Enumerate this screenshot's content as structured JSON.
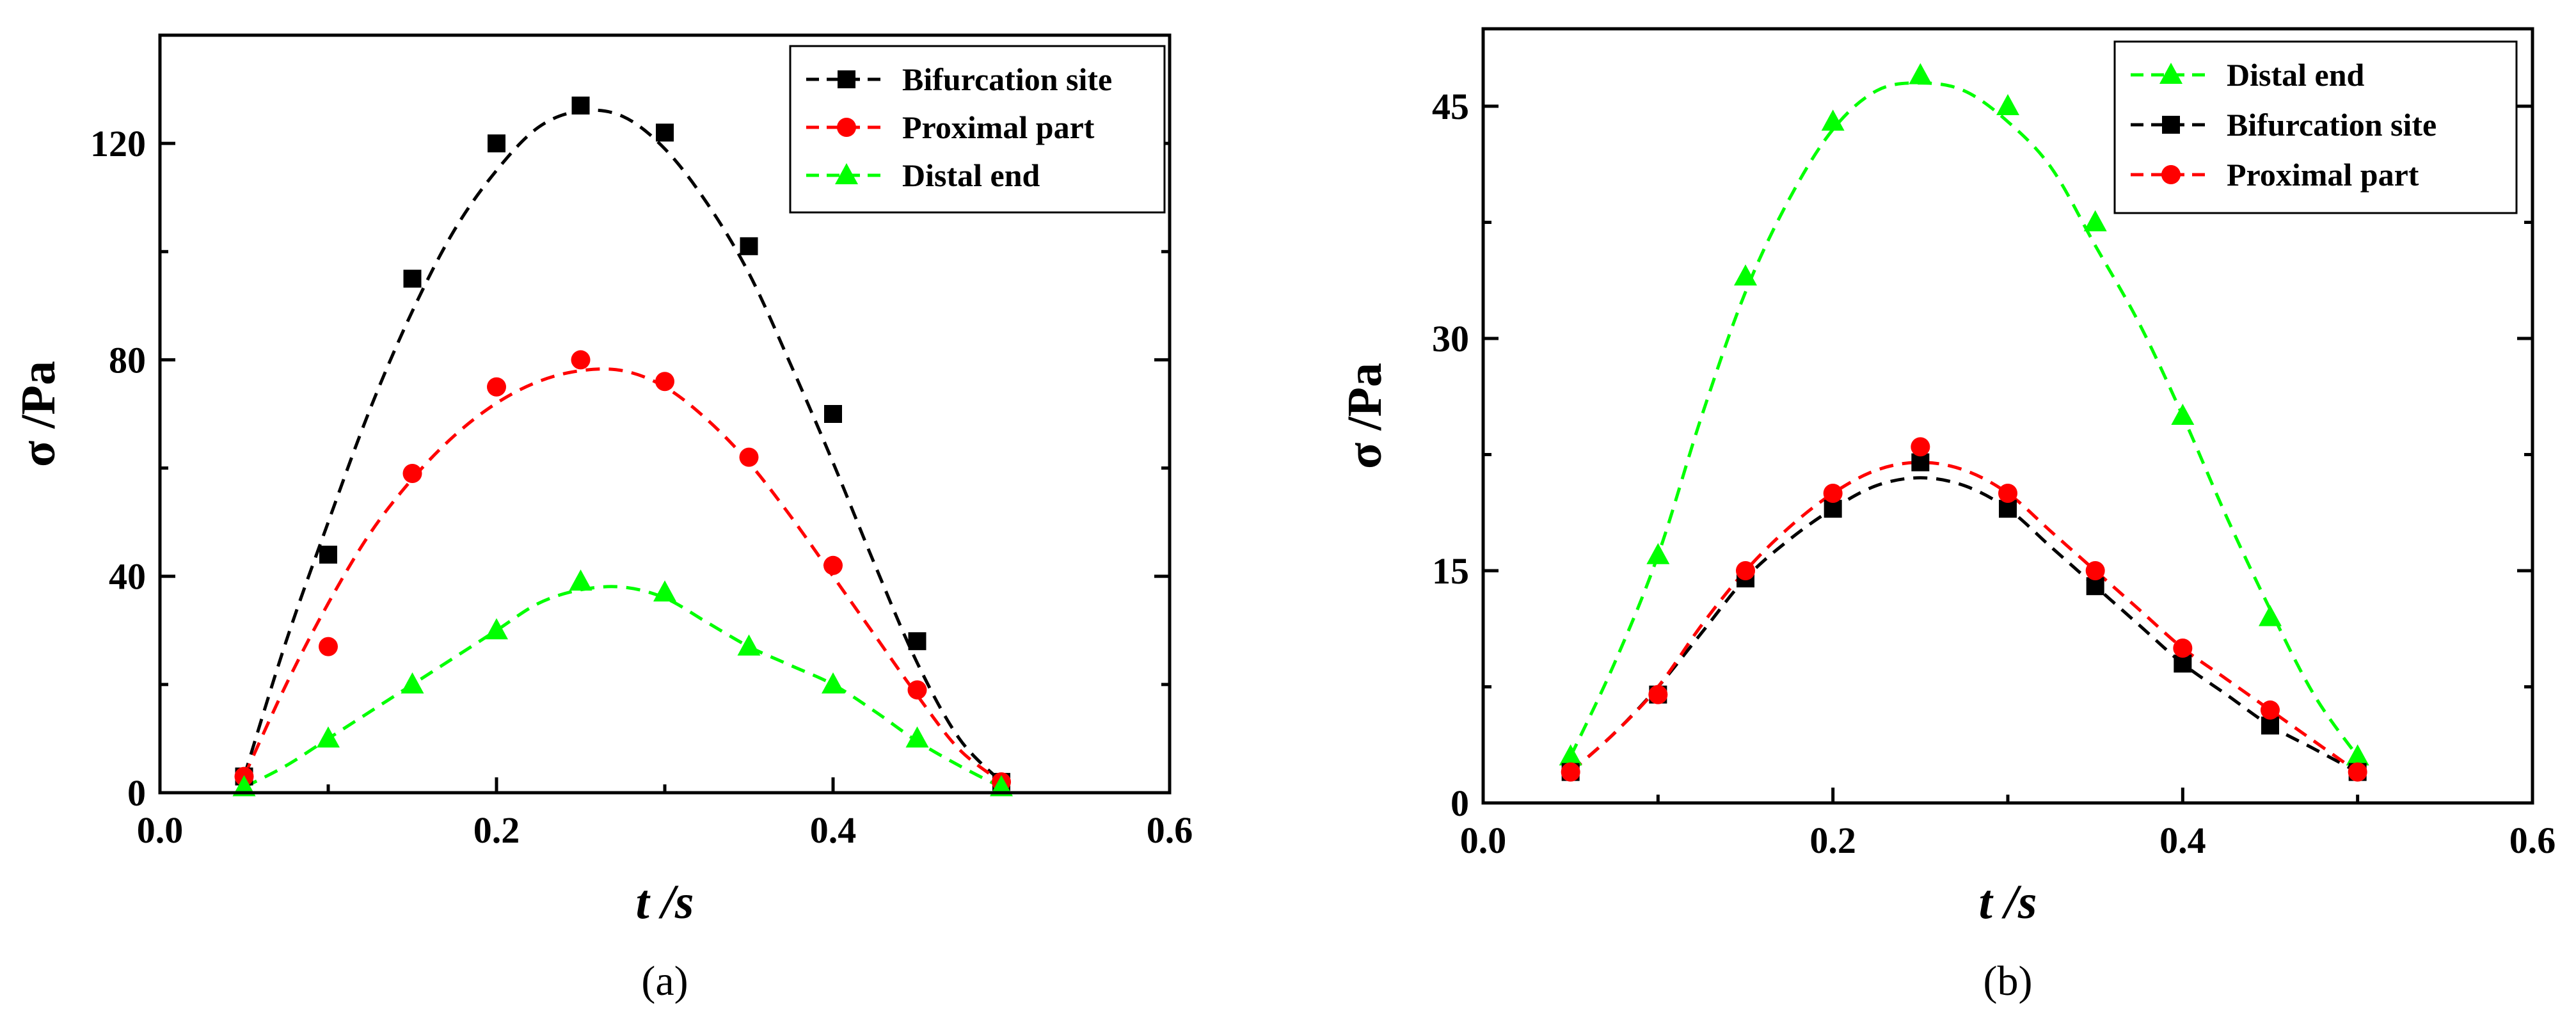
{
  "chart_data": [
    {
      "type": "line",
      "caption": "(a)",
      "xlabel_var": "t",
      "xlabel_unit": " /s",
      "ylabel": "σ /Pa",
      "xlim": [
        0.0,
        0.6
      ],
      "ylim": [
        0,
        140
      ],
      "xticks": [
        "0.0",
        "0.2",
        "0.4",
        "0.6"
      ],
      "yticks": [
        "0",
        "40",
        "80",
        "120"
      ],
      "legend_position": "top-right",
      "series": [
        {
          "name": "Bifurcation site",
          "color": "#000000",
          "marker": "square",
          "x": [
            0.05,
            0.1,
            0.15,
            0.2,
            0.25,
            0.3,
            0.35,
            0.4,
            0.45,
            0.5
          ],
          "y": [
            3,
            44,
            95,
            120,
            127,
            122,
            101,
            70,
            28,
            2
          ],
          "fit": [
            [
              0.05,
              3
            ],
            [
              0.075,
              28
            ],
            [
              0.1,
              50
            ],
            [
              0.125,
              71
            ],
            [
              0.15,
              89
            ],
            [
              0.175,
              104
            ],
            [
              0.2,
              115
            ],
            [
              0.225,
              123
            ],
            [
              0.25,
              126
            ],
            [
              0.275,
              125
            ],
            [
              0.3,
              119
            ],
            [
              0.325,
              109
            ],
            [
              0.35,
              96
            ],
            [
              0.375,
              79
            ],
            [
              0.4,
              61
            ],
            [
              0.425,
              42
            ],
            [
              0.45,
              24
            ],
            [
              0.475,
              10
            ],
            [
              0.5,
              2
            ]
          ]
        },
        {
          "name": "Proximal part",
          "color": "#ff0000",
          "marker": "circle",
          "x": [
            0.05,
            0.1,
            0.15,
            0.2,
            0.25,
            0.3,
            0.35,
            0.4,
            0.45,
            0.5
          ],
          "y": [
            3,
            27,
            59,
            75,
            80,
            76,
            62,
            42,
            19,
            2
          ],
          "fit": [
            [
              0.05,
              3
            ],
            [
              0.075,
              20
            ],
            [
              0.1,
              35
            ],
            [
              0.125,
              48
            ],
            [
              0.15,
              58
            ],
            [
              0.175,
              66
            ],
            [
              0.2,
              72
            ],
            [
              0.225,
              76
            ],
            [
              0.25,
              78
            ],
            [
              0.275,
              78
            ],
            [
              0.3,
              75
            ],
            [
              0.325,
              69
            ],
            [
              0.35,
              61
            ],
            [
              0.375,
              51
            ],
            [
              0.4,
              40
            ],
            [
              0.425,
              29
            ],
            [
              0.45,
              18
            ],
            [
              0.475,
              8
            ],
            [
              0.5,
              2
            ]
          ]
        },
        {
          "name": "Distal end",
          "color": "#00ff00",
          "marker": "triangle",
          "x": [
            0.05,
            0.1,
            0.15,
            0.2,
            0.25,
            0.3,
            0.35,
            0.4,
            0.45,
            0.5
          ],
          "y": [
            1,
            10,
            20,
            30,
            39,
            37,
            27,
            20,
            10,
            1
          ],
          "fit": [
            [
              0.05,
              1
            ],
            [
              0.075,
              5
            ],
            [
              0.1,
              10
            ],
            [
              0.125,
              15
            ],
            [
              0.15,
              20
            ],
            [
              0.175,
              25
            ],
            [
              0.2,
              30
            ],
            [
              0.225,
              35
            ],
            [
              0.25,
              37.5
            ],
            [
              0.275,
              38
            ],
            [
              0.3,
              36
            ],
            [
              0.325,
              31.5
            ],
            [
              0.35,
              27
            ],
            [
              0.375,
              23.5
            ],
            [
              0.4,
              20
            ],
            [
              0.425,
              15
            ],
            [
              0.45,
              9.5
            ],
            [
              0.475,
              5
            ],
            [
              0.5,
              1
            ]
          ]
        }
      ]
    },
    {
      "type": "line",
      "caption": "(b)",
      "xlabel_var": "t",
      "xlabel_unit": " /s",
      "ylabel": "σ  /Pa",
      "xlim": [
        0.0,
        0.6
      ],
      "ylim": [
        0,
        50
      ],
      "xticks": [
        "0.0",
        "0.2",
        "0.4",
        "0.6"
      ],
      "yticks": [
        "0",
        "15",
        "30",
        "45"
      ],
      "legend_position": "top-right",
      "series": [
        {
          "name": "Distal end",
          "color": "#00ff00",
          "marker": "triangle",
          "x": [
            0.05,
            0.1,
            0.15,
            0.2,
            0.25,
            0.3,
            0.35,
            0.4,
            0.45,
            0.5
          ],
          "y": [
            3,
            16,
            34,
            44,
            47,
            45,
            37.5,
            25,
            12,
            3
          ],
          "fit": [
            [
              0.05,
              3
            ],
            [
              0.075,
              9
            ],
            [
              0.1,
              16
            ],
            [
              0.125,
              25
            ],
            [
              0.15,
              33
            ],
            [
              0.175,
              39
            ],
            [
              0.2,
              43.5
            ],
            [
              0.225,
              46
            ],
            [
              0.25,
              46.5
            ],
            [
              0.275,
              46
            ],
            [
              0.3,
              44
            ],
            [
              0.325,
              41
            ],
            [
              0.35,
              36
            ],
            [
              0.375,
              31
            ],
            [
              0.4,
              25
            ],
            [
              0.425,
              18.5
            ],
            [
              0.45,
              12.5
            ],
            [
              0.475,
              7
            ],
            [
              0.5,
              3
            ]
          ]
        },
        {
          "name": "Bifurcation site",
          "color": "#000000",
          "marker": "square",
          "x": [
            0.05,
            0.1,
            0.15,
            0.2,
            0.25,
            0.3,
            0.35,
            0.4,
            0.45,
            0.5
          ],
          "y": [
            2,
            7,
            14.5,
            19,
            22,
            19,
            14,
            9,
            5,
            2
          ],
          "fit": [
            [
              0.05,
              2
            ],
            [
              0.075,
              4.5
            ],
            [
              0.1,
              7.5
            ],
            [
              0.125,
              11
            ],
            [
              0.15,
              14.5
            ],
            [
              0.175,
              17
            ],
            [
              0.2,
              19
            ],
            [
              0.225,
              20.5
            ],
            [
              0.25,
              21
            ],
            [
              0.275,
              20.5
            ],
            [
              0.3,
              19
            ],
            [
              0.325,
              16.5
            ],
            [
              0.35,
              14
            ],
            [
              0.375,
              11.5
            ],
            [
              0.4,
              9
            ],
            [
              0.425,
              7
            ],
            [
              0.45,
              5
            ],
            [
              0.475,
              3.5
            ],
            [
              0.5,
              2
            ]
          ]
        },
        {
          "name": "Proximal part",
          "color": "#ff0000",
          "marker": "circle",
          "x": [
            0.05,
            0.1,
            0.15,
            0.2,
            0.25,
            0.3,
            0.35,
            0.4,
            0.45,
            0.5
          ],
          "y": [
            2,
            7,
            15,
            20,
            23,
            20,
            15,
            10,
            6,
            2
          ],
          "fit": [
            [
              0.05,
              2
            ],
            [
              0.075,
              4.5
            ],
            [
              0.1,
              7.5
            ],
            [
              0.125,
              11.5
            ],
            [
              0.15,
              15
            ],
            [
              0.175,
              17.8
            ],
            [
              0.2,
              20
            ],
            [
              0.225,
              21.5
            ],
            [
              0.25,
              22
            ],
            [
              0.275,
              21.5
            ],
            [
              0.3,
              20
            ],
            [
              0.325,
              17.5
            ],
            [
              0.35,
              15
            ],
            [
              0.375,
              12.5
            ],
            [
              0.4,
              10
            ],
            [
              0.425,
              8
            ],
            [
              0.45,
              6
            ],
            [
              0.475,
              4
            ],
            [
              0.5,
              2
            ]
          ]
        }
      ]
    }
  ]
}
